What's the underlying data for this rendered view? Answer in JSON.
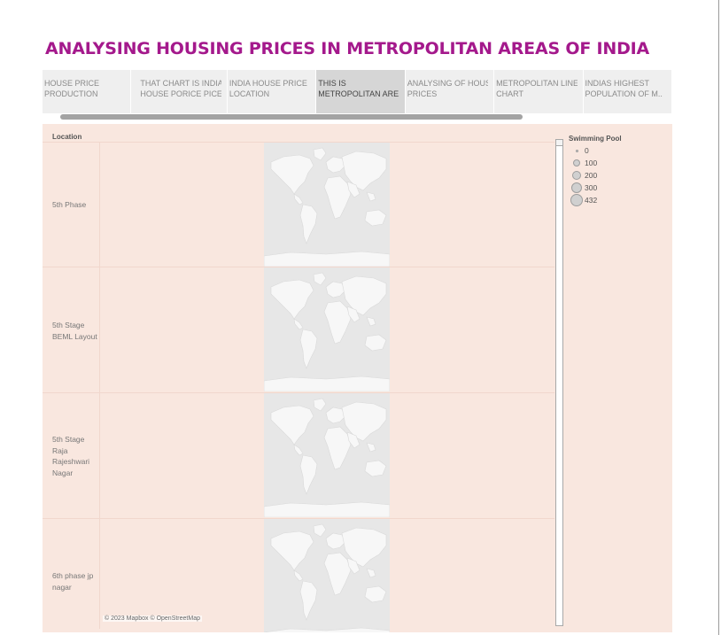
{
  "title": "ANALYSING HOUSING PRICES IN METROPOLITAN AREAS OF INDIA",
  "tabs": [
    {
      "line1": "HOUSE PRICE",
      "line2": "PRODUCTION",
      "active": false
    },
    {
      "line1": "THAT CHART IS INDIAS",
      "line2": "HOUSE PORICE PICE C..",
      "active": false
    },
    {
      "line1": "INDIA HOUSE PRICE",
      "line2": "LOCATION",
      "active": false
    },
    {
      "line1": "THIS IS",
      "line2": "METROPOLITAN ARE..",
      "active": true
    },
    {
      "line1": "ANALYSING OF HOUSE",
      "line2": "PRICES",
      "active": false
    },
    {
      "line1": "METROPOLITAN LINE",
      "line2": "CHART",
      "active": false
    },
    {
      "line1": "INDIAS HIGHEST",
      "line2": "POPULATION OF M..",
      "active": false
    }
  ],
  "view": {
    "column_header": "Location",
    "rows": [
      {
        "lines": [
          "5th Phase"
        ]
      },
      {
        "lines": [
          "5th Stage",
          "BEML Layout"
        ]
      },
      {
        "lines": [
          "5th Stage",
          "Raja",
          "Rajeshwari",
          "Nagar"
        ]
      },
      {
        "lines": [
          "6th phase jp",
          "nagar"
        ]
      }
    ],
    "attribution": "© 2023 Mapbox © OpenStreetMap"
  },
  "legend": {
    "title": "Swimming Pool",
    "items": [
      {
        "label": "0"
      },
      {
        "label": "100"
      },
      {
        "label": "200"
      },
      {
        "label": "300"
      },
      {
        "label": "432"
      }
    ]
  },
  "colors": {
    "title": "#a4198c",
    "view_background": "#f9e7df",
    "map_land": "#f7f7f7",
    "map_water": "#e7e7e7"
  }
}
